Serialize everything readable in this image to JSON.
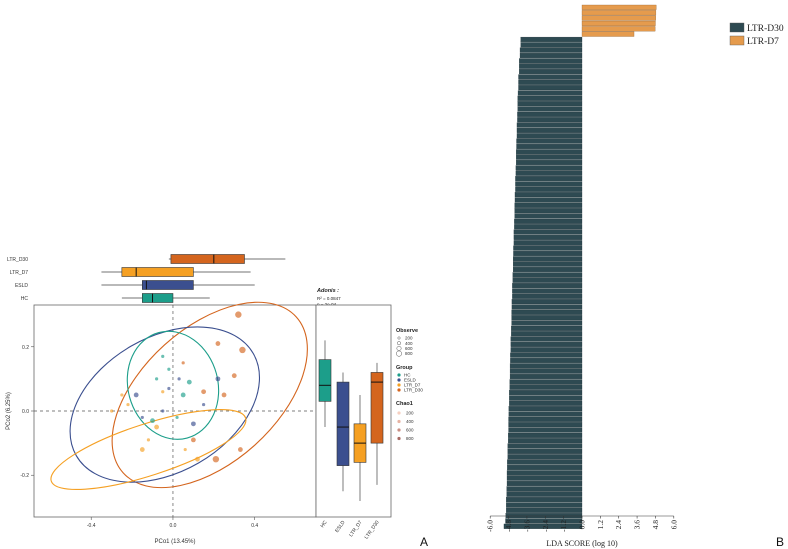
{
  "panel_labels": {
    "a": "A",
    "b": "B"
  },
  "colors": {
    "HC": "#1c9e8a",
    "ESLD": "#3b4f8f",
    "LTR_D7": "#f5a023",
    "LTR_D30": "#d4651e",
    "lda_d30": "#2e4a52",
    "lda_d7": "#e59b4d"
  },
  "chart_data": [
    {
      "id": "pcoa-top-boxplot",
      "type": "boxplot",
      "orientation": "horizontal",
      "axis": "PCo1",
      "xlim": [
        -0.68,
        0.7
      ],
      "groups": [
        {
          "name": "LTR_D30",
          "color_key": "LTR_D30",
          "whisker": [
            -0.02,
            0.55
          ],
          "q1": -0.01,
          "median": 0.2,
          "q3": 0.35
        },
        {
          "name": "LTR_D7",
          "color_key": "LTR_D7",
          "whisker": [
            -0.35,
            0.38
          ],
          "q1": -0.25,
          "median": -0.18,
          "q3": 0.1
        },
        {
          "name": "ESLD",
          "color_key": "ESLD",
          "whisker": [
            -0.35,
            0.4
          ],
          "q1": -0.15,
          "median": -0.13,
          "q3": 0.1
        },
        {
          "name": "HC",
          "color_key": "HC",
          "whisker": [
            -0.25,
            0.18
          ],
          "q1": -0.15,
          "median": -0.1,
          "q3": 0.0
        }
      ]
    },
    {
      "id": "pcoa-scatter",
      "type": "scatter",
      "xlabel": "PCo1 (13.45%)",
      "ylabel": "PCo2 (6.25%)",
      "xlim": [
        -0.68,
        0.7
      ],
      "ylim": [
        -0.33,
        0.33
      ],
      "xticks": [
        -0.4,
        0.0,
        0.4
      ],
      "yticks": [
        -0.2,
        0.0,
        0.2
      ],
      "xtick_labels": [
        "-0.4",
        "0.0",
        "0.4"
      ],
      "ytick_labels": [
        "-0.2",
        "0.0",
        "0.2"
      ],
      "annotation": {
        "title": "Adonis :",
        "r2": "R² = 0.0847",
        "p": "p = 2e-04"
      },
      "ellipses": [
        {
          "group": "LTR_D30",
          "cx": 0.18,
          "cy": 0.05,
          "rx": 0.57,
          "ry": 0.21,
          "angle": -42
        },
        {
          "group": "ESLD",
          "cx": -0.04,
          "cy": 0.02,
          "rx": 0.5,
          "ry": 0.21,
          "angle": -30
        },
        {
          "group": "HC",
          "cx": 0.0,
          "cy": 0.08,
          "rx": 0.22,
          "ry": 0.17,
          "angle": -15
        },
        {
          "group": "LTR_D7",
          "cx": -0.12,
          "cy": -0.12,
          "rx": 0.5,
          "ry": 0.08,
          "angle": -18
        }
      ],
      "points": [
        {
          "g": "LTR_D30",
          "x": 0.32,
          "y": 0.3,
          "s": 3
        },
        {
          "g": "LTR_D30",
          "x": 0.22,
          "y": 0.21,
          "s": 2
        },
        {
          "g": "LTR_D30",
          "x": 0.34,
          "y": 0.19,
          "s": 3
        },
        {
          "g": "LTR_D30",
          "x": 0.3,
          "y": 0.11,
          "s": 2
        },
        {
          "g": "LTR_D30",
          "x": 0.15,
          "y": 0.06,
          "s": 2
        },
        {
          "g": "LTR_D30",
          "x": 0.21,
          "y": -0.15,
          "s": 3
        },
        {
          "g": "LTR_D30",
          "x": 0.1,
          "y": -0.09,
          "s": 2
        },
        {
          "g": "LTR_D30",
          "x": 0.05,
          "y": 0.15,
          "s": 1
        },
        {
          "g": "LTR_D30",
          "x": 0.33,
          "y": -0.12,
          "s": 2
        },
        {
          "g": "LTR_D30",
          "x": 0.25,
          "y": 0.05,
          "s": 2
        },
        {
          "g": "ESLD",
          "x": 0.22,
          "y": 0.1,
          "s": 2
        },
        {
          "g": "ESLD",
          "x": 0.03,
          "y": 0.1,
          "s": 1
        },
        {
          "g": "ESLD",
          "x": -0.05,
          "y": 0.0,
          "s": 1
        },
        {
          "g": "ESLD",
          "x": -0.15,
          "y": -0.02,
          "s": 1
        },
        {
          "g": "ESLD",
          "x": 0.1,
          "y": -0.04,
          "s": 2
        },
        {
          "g": "ESLD",
          "x": -0.02,
          "y": 0.07,
          "s": 1
        },
        {
          "g": "ESLD",
          "x": 0.15,
          "y": 0.02,
          "s": 1
        },
        {
          "g": "ESLD",
          "x": -0.18,
          "y": 0.05,
          "s": 2
        },
        {
          "g": "HC",
          "x": -0.02,
          "y": 0.13,
          "s": 1
        },
        {
          "g": "HC",
          "x": 0.05,
          "y": 0.05,
          "s": 2
        },
        {
          "g": "HC",
          "x": -0.08,
          "y": 0.1,
          "s": 1
        },
        {
          "g": "HC",
          "x": -0.1,
          "y": -0.03,
          "s": 2
        },
        {
          "g": "HC",
          "x": 0.02,
          "y": -0.02,
          "s": 1
        },
        {
          "g": "HC",
          "x": -0.05,
          "y": 0.17,
          "s": 1
        },
        {
          "g": "HC",
          "x": 0.08,
          "y": 0.09,
          "s": 2
        },
        {
          "g": "LTR_D7",
          "x": -0.3,
          "y": 0.0,
          "s": 1
        },
        {
          "g": "LTR_D7",
          "x": -0.15,
          "y": -0.12,
          "s": 2
        },
        {
          "g": "LTR_D7",
          "x": 0.06,
          "y": -0.12,
          "s": 1
        },
        {
          "g": "LTR_D7",
          "x": -0.12,
          "y": -0.09,
          "s": 1
        },
        {
          "g": "LTR_D7",
          "x": -0.05,
          "y": 0.06,
          "s": 1
        },
        {
          "g": "LTR_D7",
          "x": -0.08,
          "y": -0.05,
          "s": 2
        },
        {
          "g": "LTR_D7",
          "x": -0.25,
          "y": 0.05,
          "s": 1
        },
        {
          "g": "LTR_D7",
          "x": -0.22,
          "y": 0.02,
          "s": 1
        },
        {
          "g": "LTR_D7",
          "x": 0.12,
          "y": -0.15,
          "s": 2
        }
      ]
    },
    {
      "id": "pcoa-side-boxplot",
      "type": "boxplot",
      "orientation": "vertical",
      "axis": "PCo2",
      "ylim": [
        -0.33,
        0.33
      ],
      "groups": [
        {
          "name": "HC",
          "color_key": "HC",
          "whisker": [
            -0.05,
            0.22
          ],
          "q1": 0.03,
          "median": 0.08,
          "q3": 0.16
        },
        {
          "name": "ESLD",
          "color_key": "ESLD",
          "whisker": [
            -0.25,
            0.12
          ],
          "q1": -0.17,
          "median": -0.05,
          "q3": 0.09
        },
        {
          "name": "LTR_D7",
          "color_key": "LTR_D7",
          "whisker": [
            -0.28,
            0.05
          ],
          "q1": -0.16,
          "median": -0.1,
          "q3": -0.04
        },
        {
          "name": "LTR_D30",
          "color_key": "LTR_D30",
          "whisker": [
            -0.23,
            0.15
          ],
          "q1": -0.1,
          "median": 0.09,
          "q3": 0.12
        }
      ]
    },
    {
      "id": "lda-bar",
      "type": "bar",
      "orientation": "horizontal",
      "xlabel": "LDA SCORE (log 10)",
      "xlim": [
        -6.0,
        6.0
      ],
      "xticks": [
        "-6.0",
        "-4.8",
        "-3.6",
        "-2.4",
        "-1.2",
        "0.0",
        "1.2",
        "2.4",
        "3.6",
        "4.8",
        "6.0"
      ],
      "legend": [
        {
          "label": "LTR-D30",
          "color_key": "lda_d30"
        },
        {
          "label": "LTR-D7",
          "color_key": "lda_d7"
        }
      ],
      "series": [
        {
          "name": "LTR-D7",
          "values": [
            4.85,
            4.83,
            4.82,
            4.8,
            4.78,
            3.4
          ]
        },
        {
          "name": "LTR-D30",
          "values": [
            -4.0,
            -4.0,
            -4.05,
            -4.05,
            -4.1,
            -4.1,
            -4.1,
            -4.15,
            -4.15,
            -4.15,
            -4.18,
            -4.2,
            -4.2,
            -4.2,
            -4.22,
            -4.22,
            -4.25,
            -4.25,
            -4.25,
            -4.28,
            -4.28,
            -4.3,
            -4.3,
            -4.3,
            -4.32,
            -4.32,
            -4.35,
            -4.35,
            -4.35,
            -4.38,
            -4.38,
            -4.4,
            -4.4,
            -4.4,
            -4.42,
            -4.42,
            -4.45,
            -4.45,
            -4.45,
            -4.48,
            -4.48,
            -4.5,
            -4.5,
            -4.5,
            -4.52,
            -4.52,
            -4.55,
            -4.55,
            -4.55,
            -4.58,
            -4.58,
            -4.6,
            -4.6,
            -4.6,
            -4.62,
            -4.62,
            -4.65,
            -4.65,
            -4.65,
            -4.68,
            -4.68,
            -4.7,
            -4.7,
            -4.7,
            -4.72,
            -4.72,
            -4.75,
            -4.75,
            -4.75,
            -4.78,
            -4.78,
            -4.8,
            -4.8,
            -4.8,
            -4.82,
            -4.82,
            -4.85,
            -4.85,
            -4.85,
            -4.88,
            -4.88,
            -4.9,
            -4.9,
            -4.9,
            -4.92,
            -4.92,
            -4.95,
            -4.95,
            -4.95,
            -4.98,
            -5.0,
            -5.1
          ]
        }
      ]
    }
  ],
  "legends": {
    "observe": {
      "title": "Observe",
      "items": [
        "200",
        "400",
        "600",
        "800"
      ]
    },
    "group": {
      "title": "Group",
      "items": [
        "HC",
        "ESLD",
        "LTR_D7",
        "LTR_D30"
      ]
    },
    "chao1": {
      "title": "Chao1",
      "items": [
        "200",
        "400",
        "600",
        "800"
      ]
    }
  }
}
